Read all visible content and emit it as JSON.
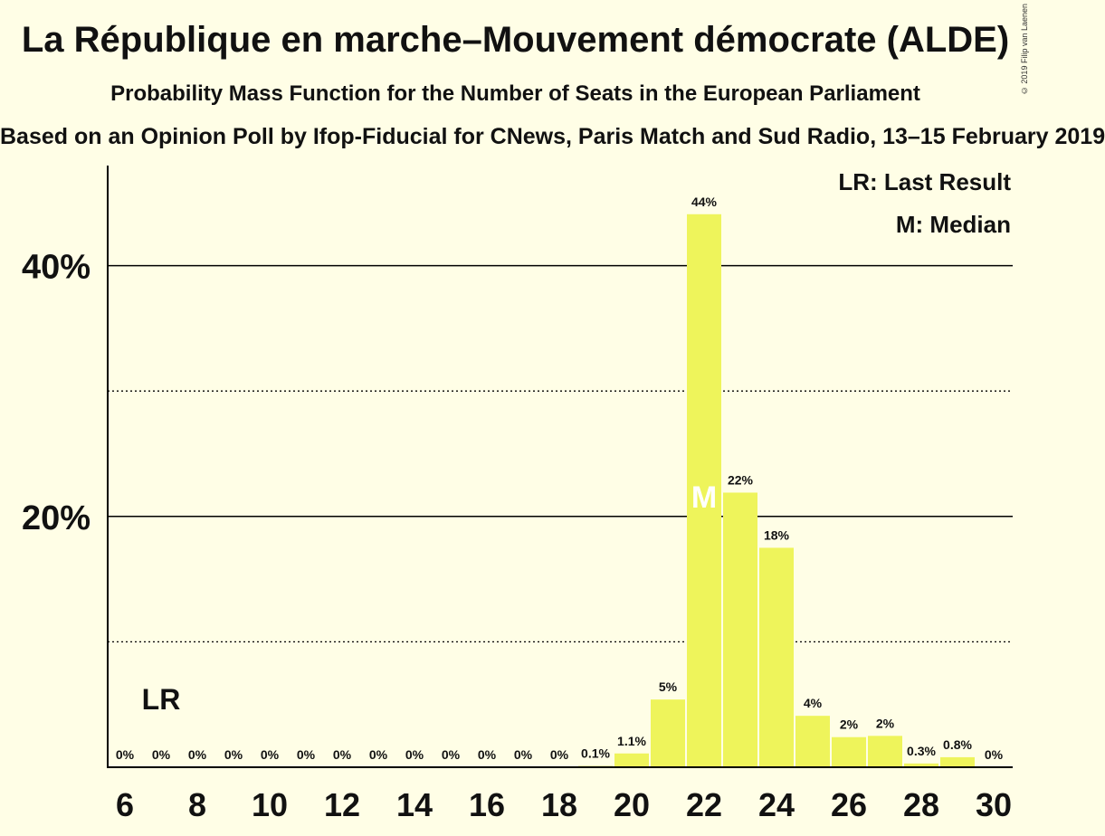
{
  "title": "La République en marche–Mouvement démocrate (ALDE)",
  "subtitle": "Probability Mass Function for the Number of Seats in the European Parliament",
  "source": "Based on an Opinion Poll by Ifop-Fiducial for CNews, Paris Match and Sud Radio, 13–15 February 2019",
  "copyright": "© 2019 Filip van Laenen",
  "legend": {
    "last_result": "LR: Last Result",
    "median": "M: Median"
  },
  "markers": {
    "last_result_label": "LR",
    "last_result_x": 7,
    "median_label": "M",
    "median_x": 22
  },
  "colors": {
    "bar": "#EEF45B",
    "background": "#FFFEE6",
    "text": "#111111"
  },
  "chart_data": {
    "type": "bar",
    "x": [
      6,
      7,
      8,
      9,
      10,
      11,
      12,
      13,
      14,
      15,
      16,
      17,
      18,
      19,
      20,
      21,
      22,
      23,
      24,
      25,
      26,
      27,
      28,
      29,
      30
    ],
    "values": [
      0,
      0,
      0,
      0,
      0,
      0,
      0,
      0,
      0,
      0,
      0,
      0,
      0,
      0.1,
      1.1,
      5.4,
      44.1,
      21.9,
      17.5,
      4.1,
      2.4,
      2.5,
      0.3,
      0.8,
      0
    ],
    "labels": [
      "0%",
      "0%",
      "0%",
      "0%",
      "0%",
      "0%",
      "0%",
      "0%",
      "0%",
      "0%",
      "0%",
      "0%",
      "0%",
      "0.1%",
      "1.1%",
      "5%",
      "44%",
      "22%",
      "18%",
      "4%",
      "2%",
      "2%",
      "0.3%",
      "0.8%",
      "0%"
    ],
    "x_ticks": [
      "6",
      "8",
      "10",
      "12",
      "14",
      "16",
      "18",
      "20",
      "22",
      "24",
      "26",
      "28",
      "30"
    ],
    "y_ticks": [
      "20%",
      "40%"
    ],
    "ylim": [
      0,
      48
    ],
    "grid": "solid at 20% and 40%, dotted at 10% and 30%",
    "legend_position": "top-right"
  }
}
